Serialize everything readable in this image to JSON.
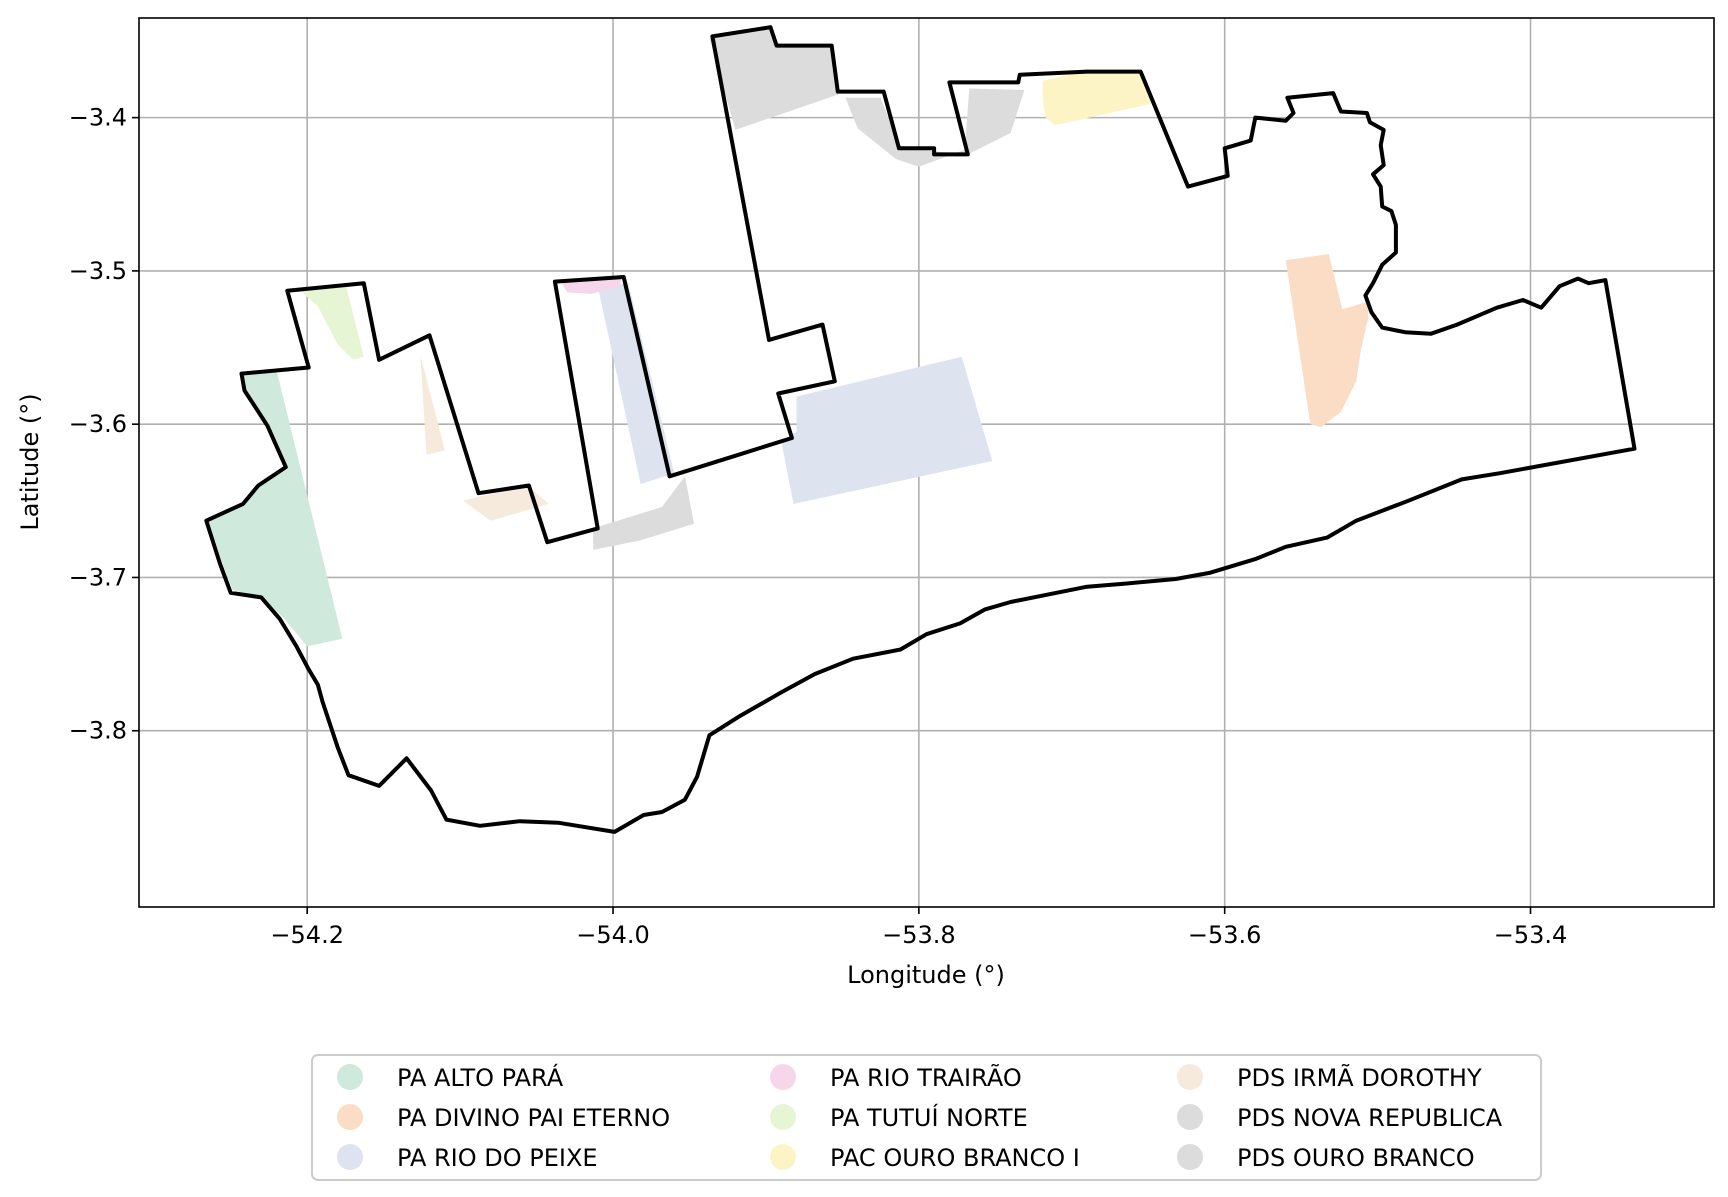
{
  "chart_data": {
    "type": "map",
    "xlabel": "Longitude (°)",
    "ylabel": "Latitude (°)",
    "xlim": [
      -54.31,
      -53.28
    ],
    "ylim": [
      -3.915,
      -3.335
    ],
    "xticks": [
      -54.2,
      -54.0,
      -53.8,
      -53.6,
      -53.4
    ],
    "yticks": [
      -3.4,
      -3.5,
      -3.6,
      -3.7,
      -3.8
    ],
    "xtick_labels": [
      "−54.2",
      "−54.0",
      "−53.8",
      "−53.6",
      "−53.4"
    ],
    "ytick_labels": [
      "−3.4",
      "−3.5",
      "−3.6",
      "−3.7",
      "−3.8"
    ],
    "grid": true,
    "legend_position": "bottom-center",
    "legend_columns": 3,
    "legend": [
      {
        "label": "PA ALTO PARÁ",
        "color": "#cfe9dc"
      },
      {
        "label": "PA DIVINO PAI ETERNO",
        "color": "#fbdcc4"
      },
      {
        "label": "PA RIO DO PEIXE",
        "color": "#dde3ef"
      },
      {
        "label": "PA RIO TRAIRÃO",
        "color": "#f6d6ea"
      },
      {
        "label": "PA TUTUÍ NORTE",
        "color": "#e6f5d4"
      },
      {
        "label": "PAC OURO BRANCO I",
        "color": "#fdf4c6"
      },
      {
        "label": "PDS IRMÃ DOROTHY",
        "color": "#f5eadb"
      },
      {
        "label": "PDS NOVA REPUBLICA",
        "color": "#dcdcdc"
      },
      {
        "label": "PDS OURO BRANCO",
        "color": "#dcdcdc"
      }
    ],
    "boundary": [
      [
        -54.213,
        -3.513
      ],
      [
        -54.163,
        -3.508
      ],
      [
        -54.153,
        -3.558
      ],
      [
        -54.12,
        -3.542
      ],
      [
        -54.088,
        -3.645
      ],
      [
        -54.055,
        -3.64
      ],
      [
        -54.043,
        -3.677
      ],
      [
        -54.01,
        -3.668
      ],
      [
        -54.038,
        -3.507
      ],
      [
        -53.993,
        -3.504
      ],
      [
        -53.963,
        -3.634
      ],
      [
        -53.918,
        -3.62
      ],
      [
        -53.883,
        -3.609
      ],
      [
        -53.892,
        -3.58
      ],
      [
        -53.855,
        -3.572
      ],
      [
        -53.863,
        -3.535
      ],
      [
        -53.898,
        -3.545
      ],
      [
        -53.935,
        -3.347
      ],
      [
        -53.897,
        -3.341
      ],
      [
        -53.893,
        -3.353
      ],
      [
        -53.857,
        -3.353
      ],
      [
        -53.853,
        -3.383
      ],
      [
        -53.823,
        -3.383
      ],
      [
        -53.813,
        -3.42
      ],
      [
        -53.79,
        -3.42
      ],
      [
        -53.79,
        -3.424
      ],
      [
        -53.768,
        -3.424
      ],
      [
        -53.78,
        -3.377
      ],
      [
        -53.735,
        -3.377
      ],
      [
        -53.734,
        -3.372
      ],
      [
        -53.69,
        -3.37
      ],
      [
        -53.655,
        -3.37
      ],
      [
        -53.624,
        -3.445
      ],
      [
        -53.598,
        -3.438
      ],
      [
        -53.6,
        -3.42
      ],
      [
        -53.583,
        -3.415
      ],
      [
        -53.58,
        -3.4
      ],
      [
        -53.56,
        -3.402
      ],
      [
        -53.555,
        -3.397
      ],
      [
        -53.559,
        -3.387
      ],
      [
        -53.529,
        -3.384
      ],
      [
        -53.524,
        -3.396
      ],
      [
        -53.507,
        -3.397
      ],
      [
        -53.505,
        -3.403
      ],
      [
        -53.496,
        -3.408
      ],
      [
        -53.498,
        -3.418
      ],
      [
        -53.496,
        -3.431
      ],
      [
        -53.503,
        -3.437
      ],
      [
        -53.498,
        -3.445
      ],
      [
        -53.497,
        -3.458
      ],
      [
        -53.491,
        -3.461
      ],
      [
        -53.488,
        -3.47
      ],
      [
        -53.488,
        -3.488
      ],
      [
        -53.497,
        -3.496
      ],
      [
        -53.503,
        -3.508
      ],
      [
        -53.508,
        -3.516
      ],
      [
        -53.504,
        -3.527
      ],
      [
        -53.497,
        -3.537
      ],
      [
        -53.482,
        -3.54
      ],
      [
        -53.465,
        -3.541
      ],
      [
        -53.448,
        -3.535
      ],
      [
        -53.422,
        -3.524
      ],
      [
        -53.405,
        -3.519
      ],
      [
        -53.393,
        -3.524
      ],
      [
        -53.381,
        -3.51
      ],
      [
        -53.369,
        -3.505
      ],
      [
        -53.362,
        -3.508
      ],
      [
        -53.351,
        -3.506
      ],
      [
        -53.332,
        -3.616
      ],
      [
        -53.42,
        -3.632
      ],
      [
        -53.445,
        -3.636
      ],
      [
        -53.48,
        -3.65
      ],
      [
        -53.514,
        -3.663
      ],
      [
        -53.533,
        -3.674
      ],
      [
        -53.56,
        -3.68
      ],
      [
        -53.58,
        -3.688
      ],
      [
        -53.61,
        -3.697
      ],
      [
        -53.632,
        -3.701
      ],
      [
        -53.665,
        -3.704
      ],
      [
        -53.69,
        -3.706
      ],
      [
        -53.71,
        -3.71
      ],
      [
        -53.74,
        -3.716
      ],
      [
        -53.757,
        -3.721
      ],
      [
        -53.773,
        -3.73
      ],
      [
        -53.795,
        -3.737
      ],
      [
        -53.812,
        -3.747
      ],
      [
        -53.843,
        -3.753
      ],
      [
        -53.868,
        -3.763
      ],
      [
        -53.89,
        -3.775
      ],
      [
        -53.918,
        -3.791
      ],
      [
        -53.937,
        -3.803
      ],
      [
        -53.945,
        -3.83
      ],
      [
        -53.953,
        -3.845
      ],
      [
        -53.968,
        -3.853
      ],
      [
        -53.98,
        -3.855
      ],
      [
        -53.999,
        -3.866
      ],
      [
        -54.036,
        -3.86
      ],
      [
        -54.061,
        -3.859
      ],
      [
        -54.087,
        -3.862
      ],
      [
        -54.109,
        -3.858
      ],
      [
        -54.119,
        -3.839
      ],
      [
        -54.135,
        -3.818
      ],
      [
        -54.153,
        -3.836
      ],
      [
        -54.173,
        -3.829
      ],
      [
        -54.18,
        -3.811
      ],
      [
        -54.19,
        -3.781
      ],
      [
        -54.193,
        -3.77
      ],
      [
        -54.199,
        -3.76
      ],
      [
        -54.207,
        -3.745
      ],
      [
        -54.218,
        -3.727
      ],
      [
        -54.23,
        -3.713
      ],
      [
        -54.25,
        -3.71
      ],
      [
        -54.257,
        -3.691
      ],
      [
        -54.266,
        -3.663
      ],
      [
        -54.242,
        -3.652
      ],
      [
        -54.232,
        -3.64
      ],
      [
        -54.214,
        -3.628
      ],
      [
        -54.226,
        -3.601
      ],
      [
        -54.241,
        -3.578
      ],
      [
        -54.243,
        -3.567
      ],
      [
        -54.199,
        -3.563
      ],
      [
        -54.213,
        -3.513
      ]
    ],
    "settlements": [
      {
        "name": "PA ALTO PARÁ",
        "polygon": [
          [
            -54.265,
            -3.662
          ],
          [
            -54.255,
            -3.692
          ],
          [
            -54.249,
            -3.708
          ],
          [
            -54.23,
            -3.713
          ],
          [
            -54.215,
            -3.727
          ],
          [
            -54.2,
            -3.745
          ],
          [
            -54.177,
            -3.74
          ],
          [
            -54.22,
            -3.565
          ],
          [
            -54.243,
            -3.567
          ],
          [
            -54.241,
            -3.578
          ],
          [
            -54.226,
            -3.601
          ],
          [
            -54.214,
            -3.628
          ],
          [
            -54.232,
            -3.64
          ],
          [
            -54.242,
            -3.652
          ]
        ]
      },
      {
        "name": "PA DIVINO PAI ETERNO",
        "polygon": [
          [
            -53.56,
            -3.493
          ],
          [
            -53.532,
            -3.489
          ],
          [
            -53.523,
            -3.525
          ],
          [
            -53.506,
            -3.52
          ],
          [
            -53.506,
            -3.53
          ],
          [
            -53.511,
            -3.552
          ],
          [
            -53.514,
            -3.572
          ],
          [
            -53.524,
            -3.592
          ],
          [
            -53.537,
            -3.602
          ],
          [
            -53.544,
            -3.6
          ]
        ]
      },
      {
        "name": "PA RIO DO PEIXE",
        "polygon": [
          [
            -54.01,
            -3.51
          ],
          [
            -53.99,
            -3.508
          ],
          [
            -53.96,
            -3.632
          ],
          [
            -53.982,
            -3.639
          ]
        ]
      },
      {
        "name": "PA RIO DO PEIXE",
        "polygon": [
          [
            -53.88,
            -3.582
          ],
          [
            -53.772,
            -3.556
          ],
          [
            -53.752,
            -3.624
          ],
          [
            -53.882,
            -3.652
          ],
          [
            -53.89,
            -3.611
          ],
          [
            -53.88,
            -3.605
          ]
        ]
      },
      {
        "name": "PA RIO TRAIRÃO",
        "polygon": [
          [
            -54.034,
            -3.507
          ],
          [
            -53.995,
            -3.505
          ],
          [
            -53.995,
            -3.51
          ],
          [
            -54.014,
            -3.515
          ],
          [
            -54.03,
            -3.514
          ]
        ]
      },
      {
        "name": "PA TUTUÍ NORTE",
        "polygon": [
          [
            -54.205,
            -3.512
          ],
          [
            -54.175,
            -3.508
          ],
          [
            -54.163,
            -3.556
          ],
          [
            -54.17,
            -3.558
          ],
          [
            -54.18,
            -3.548
          ],
          [
            -54.188,
            -3.533
          ],
          [
            -54.193,
            -3.523
          ],
          [
            -54.2,
            -3.517
          ]
        ]
      },
      {
        "name": "PAC OURO BRANCO I",
        "polygon": [
          [
            -53.719,
            -3.376
          ],
          [
            -53.689,
            -3.369
          ],
          [
            -53.655,
            -3.37
          ],
          [
            -53.648,
            -3.391
          ],
          [
            -53.711,
            -3.405
          ],
          [
            -53.717,
            -3.4
          ],
          [
            -53.719,
            -3.389
          ]
        ]
      },
      {
        "name": "PDS IRMÃ DOROTHY",
        "polygon": [
          [
            -54.126,
            -3.555
          ],
          [
            -54.122,
            -3.62
          ],
          [
            -54.11,
            -3.617
          ]
        ]
      },
      {
        "name": "PDS IRMÃ DOROTHY",
        "polygon": [
          [
            -54.098,
            -3.65
          ],
          [
            -54.08,
            -3.663
          ],
          [
            -54.042,
            -3.652
          ],
          [
            -54.055,
            -3.641
          ],
          [
            -54.087,
            -3.647
          ]
        ]
      },
      {
        "name": "PDS NOVA REPUBLICA",
        "polygon": [
          [
            -53.937,
            -3.348
          ],
          [
            -53.897,
            -3.342
          ],
          [
            -53.893,
            -3.353
          ],
          [
            -53.857,
            -3.353
          ],
          [
            -53.853,
            -3.385
          ],
          [
            -53.92,
            -3.408
          ]
        ]
      },
      {
        "name": "PDS NOVA REPUBLICA",
        "polygon": [
          [
            -53.848,
            -3.387
          ],
          [
            -53.825,
            -3.387
          ],
          [
            -53.813,
            -3.418
          ],
          [
            -53.79,
            -3.422
          ],
          [
            -53.768,
            -3.424
          ],
          [
            -53.74,
            -3.41
          ],
          [
            -53.731,
            -3.382
          ],
          [
            -53.767,
            -3.381
          ],
          [
            -53.77,
            -3.421
          ],
          [
            -53.8,
            -3.432
          ],
          [
            -53.815,
            -3.427
          ],
          [
            -53.84,
            -3.407
          ]
        ]
      },
      {
        "name": "PDS OURO BRANCO",
        "polygon": [
          [
            -54.013,
            -3.668
          ],
          [
            -53.968,
            -3.654
          ],
          [
            -53.953,
            -3.634
          ],
          [
            -53.947,
            -3.665
          ],
          [
            -53.983,
            -3.676
          ],
          [
            -54.013,
            -3.682
          ]
        ]
      }
    ]
  }
}
